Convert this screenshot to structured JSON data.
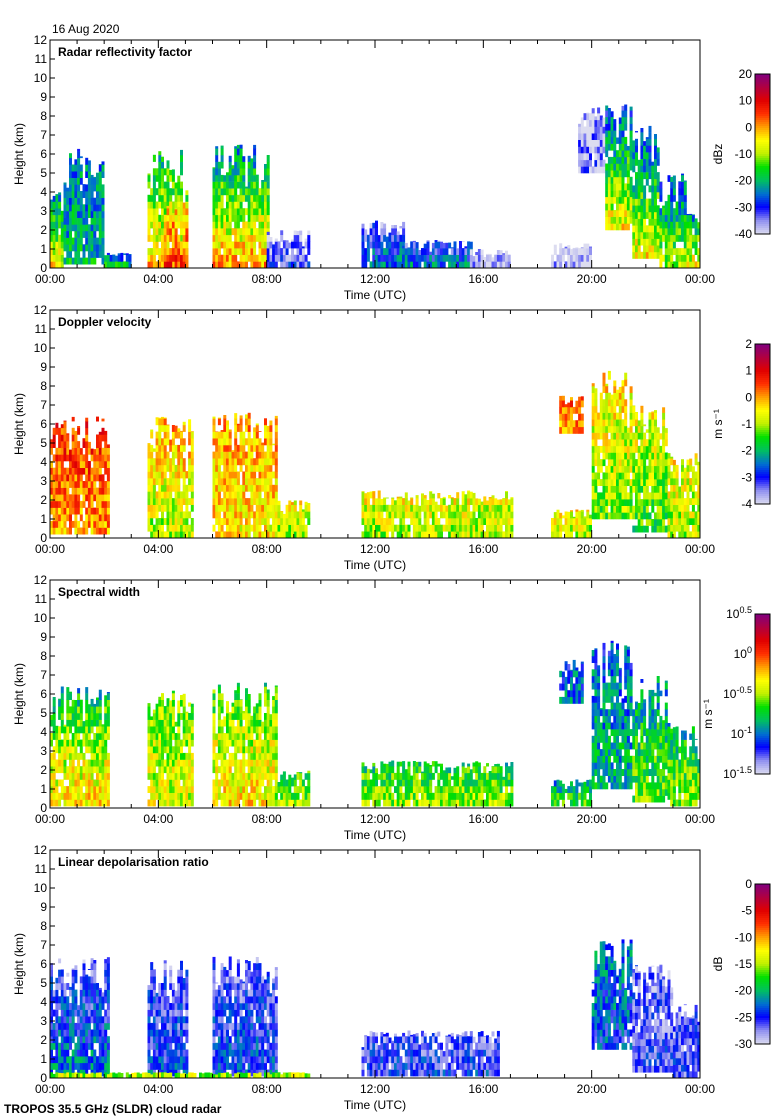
{
  "date": "16 Aug 2020",
  "footer": "TROPOS 35.5 GHz (SLDR) cloud radar",
  "colormap": [
    "#dcdcf0",
    "#9090f0",
    "#0000ff",
    "#0070d0",
    "#00c060",
    "#00e000",
    "#c0f000",
    "#ffff00",
    "#ffa000",
    "#ff3000",
    "#e00000",
    "#b00040",
    "#800080"
  ],
  "chart_data": [
    {
      "type": "heatmap",
      "title": "Radar reflectivity factor",
      "xlabel": "Time (UTC)",
      "ylabel": "Height (km)",
      "xlim": [
        0,
        24
      ],
      "ylim": [
        0,
        12
      ],
      "xticks": [
        "00:00",
        "04:00",
        "08:00",
        "12:00",
        "16:00",
        "20:00",
        "00:00"
      ],
      "yticks": [
        "0",
        "1",
        "2",
        "3",
        "4",
        "5",
        "6",
        "7",
        "8",
        "9",
        "10",
        "11",
        "12"
      ],
      "colorbar": {
        "label": "dBz",
        "range": [
          -40,
          20
        ],
        "scale": "linear",
        "ticks": [
          "20",
          "10",
          "0",
          "-10",
          "-20",
          "-30",
          "-40"
        ]
      },
      "regions_columns": [
        "t_start_h",
        "t_end_h",
        "h_bottom_km",
        "h_top_km",
        "value_bottom",
        "value_top"
      ],
      "regions": [
        [
          0,
          0.5,
          0,
          4,
          -5,
          -25
        ],
        [
          0.5,
          2,
          0.2,
          6.3,
          -20,
          -25
        ],
        [
          2,
          3,
          0,
          0.8,
          -20,
          -30
        ],
        [
          3.6,
          5,
          0,
          6.3,
          -2,
          -20
        ],
        [
          4.2,
          5,
          0,
          3.5,
          5,
          -5
        ],
        [
          6,
          8,
          0,
          6.5,
          0,
          -25
        ],
        [
          8,
          9.5,
          0,
          2,
          -32,
          -38
        ],
        [
          11.5,
          13,
          0,
          2.5,
          -25,
          -35
        ],
        [
          13,
          15.5,
          0,
          1.5,
          -25,
          -35
        ],
        [
          15.5,
          17,
          0,
          1,
          -38,
          -40
        ],
        [
          18.5,
          20,
          0,
          1.3,
          -38,
          -40
        ],
        [
          19.5,
          20.5,
          5,
          8.5,
          -35,
          -38
        ],
        [
          20.5,
          21.5,
          2,
          8.8,
          -5,
          -30
        ],
        [
          21.5,
          22.5,
          0.5,
          7.5,
          -5,
          -30
        ],
        [
          22.5,
          23.5,
          0,
          5,
          -10,
          -28
        ],
        [
          23.5,
          24,
          0,
          3,
          -5,
          -25
        ]
      ]
    },
    {
      "type": "heatmap",
      "title": "Doppler velocity",
      "xlabel": "Time (UTC)",
      "ylabel": "Height (km)",
      "xlim": [
        0,
        24
      ],
      "ylim": [
        0,
        12
      ],
      "xticks": [
        "00:00",
        "04:00",
        "08:00",
        "12:00",
        "16:00",
        "20:00",
        "00:00"
      ],
      "yticks": [
        "0",
        "1",
        "2",
        "3",
        "4",
        "5",
        "6",
        "7",
        "8",
        "9",
        "10",
        "11",
        "12"
      ],
      "colorbar": {
        "label": "m s⁻¹",
        "range": [
          -4,
          2
        ],
        "scale": "linear",
        "ticks": [
          "2",
          "1",
          "0",
          "-1",
          "-2",
          "-3",
          "-4"
        ]
      },
      "regions_columns": [
        "t_start_h",
        "t_end_h",
        "h_bottom_km",
        "h_top_km",
        "value_bottom",
        "value_top"
      ],
      "regions": [
        [
          0,
          2.2,
          0.2,
          6.4,
          0,
          0.7
        ],
        [
          3.6,
          5.2,
          0,
          6.4,
          -1,
          0
        ],
        [
          6,
          8.3,
          0,
          6.6,
          -0.5,
          0
        ],
        [
          8.3,
          9.5,
          0,
          2,
          -1,
          -0.5
        ],
        [
          11.5,
          17,
          0,
          2.5,
          -1,
          -0.5
        ],
        [
          18.5,
          20,
          0,
          1.5,
          -1,
          -0.5
        ],
        [
          18.8,
          19.7,
          5.5,
          7.5,
          0,
          0.3
        ],
        [
          20,
          21.5,
          1,
          8.8,
          -1.2,
          -0.3
        ],
        [
          21.5,
          22.8,
          0.3,
          7,
          -1.5,
          -0.5
        ],
        [
          22.8,
          24,
          0,
          4.5,
          -1,
          -0.5
        ]
      ]
    },
    {
      "type": "heatmap",
      "title": "Spectral width",
      "xlabel": "Time (UTC)",
      "ylabel": "Height (km)",
      "xlim": [
        0,
        24
      ],
      "ylim": [
        0,
        12
      ],
      "xticks": [
        "00:00",
        "04:00",
        "08:00",
        "12:00",
        "16:00",
        "20:00",
        "00:00"
      ],
      "yticks": [
        "0",
        "1",
        "2",
        "3",
        "4",
        "5",
        "6",
        "7",
        "8",
        "9",
        "10",
        "11",
        "12"
      ],
      "colorbar": {
        "label": "m s⁻¹",
        "range": [
          0.0316,
          3.16
        ],
        "scale": "log",
        "ticks": [
          {
            "base": "10",
            "exp": "0.5"
          },
          {
            "base": "10",
            "exp": "0"
          },
          {
            "base": "10",
            "exp": "-0.5"
          },
          {
            "base": "10",
            "exp": "-1"
          },
          {
            "base": "10",
            "exp": "-1.5"
          }
        ]
      },
      "regions_columns": [
        "t_start_h",
        "t_end_h",
        "h_bottom_km",
        "h_top_km",
        "value_bottom",
        "value_top"
      ],
      "regions": [
        [
          0,
          2.2,
          0.1,
          6.4,
          0.5,
          0.12
        ],
        [
          3.6,
          5.2,
          0.1,
          6.4,
          0.4,
          0.25
        ],
        [
          6,
          8.3,
          0.1,
          6.6,
          0.5,
          0.2
        ],
        [
          8.3,
          9.5,
          0.1,
          2,
          0.3,
          0.2
        ],
        [
          11.5,
          17,
          0.1,
          2.5,
          0.3,
          0.15
        ],
        [
          18.5,
          20,
          0.1,
          1.5,
          0.2,
          0.1
        ],
        [
          18.8,
          19.7,
          5.5,
          7.8,
          0.1,
          0.08
        ],
        [
          20,
          21.5,
          1,
          8.8,
          0.15,
          0.08
        ],
        [
          21.5,
          22.8,
          0.3,
          7,
          0.25,
          0.1
        ],
        [
          22.8,
          24,
          0.1,
          4.5,
          0.3,
          0.12
        ]
      ]
    },
    {
      "type": "heatmap",
      "title": "Linear depolarisation ratio",
      "xlabel": "Time (UTC)",
      "ylabel": "Height (km)",
      "xlim": [
        0,
        24
      ],
      "ylim": [
        0,
        12
      ],
      "xticks": [
        "00:00",
        "04:00",
        "08:00",
        "12:00",
        "16:00",
        "20:00",
        "00:00"
      ],
      "yticks": [
        "0",
        "1",
        "2",
        "3",
        "4",
        "5",
        "6",
        "7",
        "8",
        "9",
        "10",
        "11",
        "12"
      ],
      "colorbar": {
        "label": "dB",
        "range": [
          -30,
          0
        ],
        "scale": "linear",
        "ticks": [
          "0",
          "-5",
          "-10",
          "-15",
          "-20",
          "-25",
          "-30"
        ]
      },
      "regions_columns": [
        "t_start_h",
        "t_end_h",
        "h_bottom_km",
        "h_top_km",
        "value_bottom",
        "value_top"
      ],
      "regions": [
        [
          0,
          2.2,
          0.1,
          6.4,
          -22,
          -27
        ],
        [
          3.6,
          5,
          0.1,
          6.3,
          -24,
          -27
        ],
        [
          6,
          8.3,
          0.1,
          6.4,
          -24,
          -27
        ],
        [
          0,
          9.5,
          0,
          0.3,
          -15,
          -20
        ],
        [
          11.5,
          16.5,
          0.1,
          2.5,
          -25,
          -27
        ],
        [
          20,
          21.5,
          1.5,
          7.3,
          -24,
          -22
        ],
        [
          21.5,
          23,
          0.3,
          6,
          -26,
          -27
        ],
        [
          23,
          24,
          0,
          4,
          -26,
          -27
        ]
      ]
    }
  ]
}
